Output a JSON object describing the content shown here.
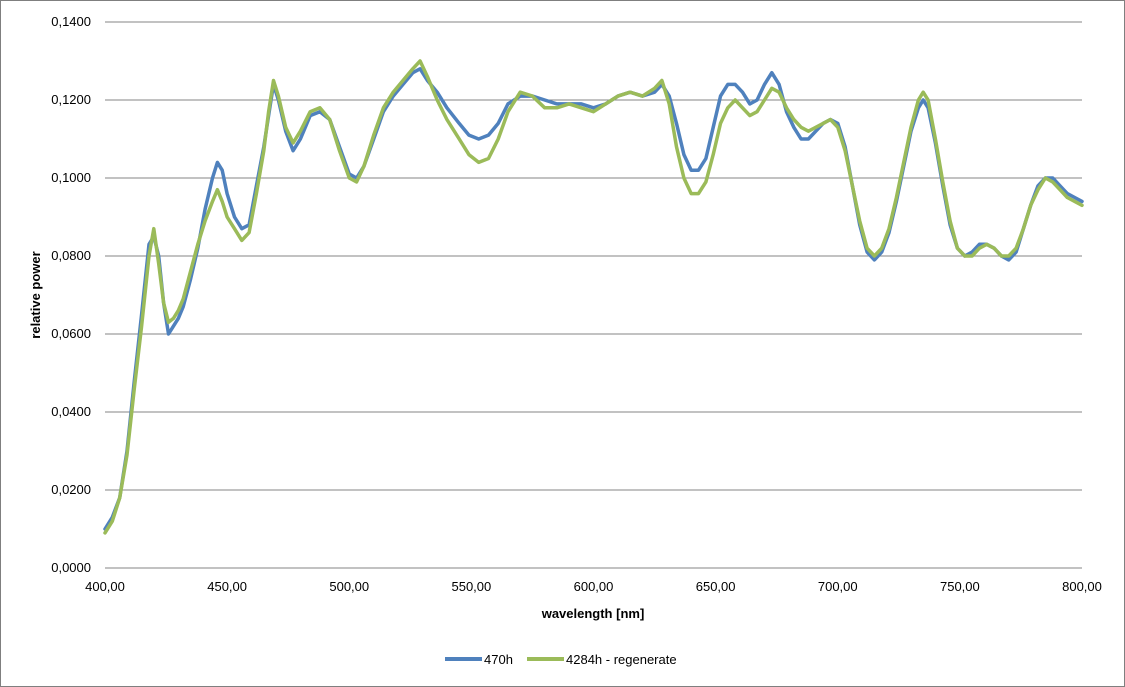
{
  "chart_data": {
    "type": "line",
    "title": "",
    "xlabel": "wavelength [nm]",
    "ylabel": "relative power",
    "xlim": [
      400,
      800
    ],
    "ylim": [
      0,
      0.14
    ],
    "x_ticks": [
      400,
      450,
      500,
      550,
      600,
      650,
      700,
      750,
      800
    ],
    "x_tick_labels": [
      "400,00",
      "450,00",
      "500,00",
      "550,00",
      "600,00",
      "650,00",
      "700,00",
      "750,00",
      "800,00"
    ],
    "y_ticks": [
      0,
      0.02,
      0.04,
      0.06,
      0.08,
      0.1,
      0.12,
      0.14
    ],
    "y_tick_labels": [
      "0,0000",
      "0,0200",
      "0,0400",
      "0,0600",
      "0,0800",
      "0,1000",
      "0,1200",
      "0,1400"
    ],
    "grid": "horizontal",
    "legend_position": "bottom",
    "series": [
      {
        "name": "470h",
        "color": "#4f81bd",
        "points": [
          [
            400,
            0.01
          ],
          [
            403,
            0.013
          ],
          [
            406,
            0.018
          ],
          [
            409,
            0.03
          ],
          [
            412,
            0.048
          ],
          [
            415,
            0.065
          ],
          [
            418,
            0.083
          ],
          [
            420,
            0.085
          ],
          [
            422,
            0.08
          ],
          [
            424,
            0.068
          ],
          [
            426,
            0.06
          ],
          [
            428,
            0.062
          ],
          [
            430,
            0.064
          ],
          [
            432,
            0.067
          ],
          [
            435,
            0.074
          ],
          [
            438,
            0.082
          ],
          [
            441,
            0.092
          ],
          [
            444,
            0.1
          ],
          [
            446,
            0.104
          ],
          [
            448,
            0.102
          ],
          [
            450,
            0.096
          ],
          [
            453,
            0.09
          ],
          [
            456,
            0.087
          ],
          [
            459,
            0.088
          ],
          [
            462,
            0.098
          ],
          [
            465,
            0.108
          ],
          [
            467,
            0.116
          ],
          [
            469,
            0.124
          ],
          [
            471,
            0.12
          ],
          [
            474,
            0.112
          ],
          [
            477,
            0.107
          ],
          [
            480,
            0.11
          ],
          [
            484,
            0.116
          ],
          [
            488,
            0.117
          ],
          [
            492,
            0.115
          ],
          [
            496,
            0.108
          ],
          [
            500,
            0.101
          ],
          [
            503,
            0.1
          ],
          [
            506,
            0.103
          ],
          [
            510,
            0.11
          ],
          [
            514,
            0.117
          ],
          [
            518,
            0.121
          ],
          [
            522,
            0.124
          ],
          [
            526,
            0.127
          ],
          [
            529,
            0.128
          ],
          [
            532,
            0.125
          ],
          [
            536,
            0.122
          ],
          [
            540,
            0.118
          ],
          [
            545,
            0.114
          ],
          [
            549,
            0.111
          ],
          [
            553,
            0.11
          ],
          [
            557,
            0.111
          ],
          [
            561,
            0.114
          ],
          [
            565,
            0.119
          ],
          [
            570,
            0.121
          ],
          [
            575,
            0.121
          ],
          [
            580,
            0.12
          ],
          [
            585,
            0.119
          ],
          [
            590,
            0.119
          ],
          [
            595,
            0.119
          ],
          [
            600,
            0.118
          ],
          [
            605,
            0.119
          ],
          [
            610,
            0.121
          ],
          [
            615,
            0.122
          ],
          [
            620,
            0.121
          ],
          [
            625,
            0.122
          ],
          [
            628,
            0.124
          ],
          [
            631,
            0.121
          ],
          [
            634,
            0.114
          ],
          [
            637,
            0.106
          ],
          [
            640,
            0.102
          ],
          [
            643,
            0.102
          ],
          [
            646,
            0.105
          ],
          [
            649,
            0.113
          ],
          [
            652,
            0.121
          ],
          [
            655,
            0.124
          ],
          [
            658,
            0.124
          ],
          [
            661,
            0.122
          ],
          [
            664,
            0.119
          ],
          [
            667,
            0.12
          ],
          [
            670,
            0.124
          ],
          [
            673,
            0.127
          ],
          [
            676,
            0.124
          ],
          [
            679,
            0.117
          ],
          [
            682,
            0.113
          ],
          [
            685,
            0.11
          ],
          [
            688,
            0.11
          ],
          [
            691,
            0.112
          ],
          [
            694,
            0.114
          ],
          [
            697,
            0.115
          ],
          [
            700,
            0.114
          ],
          [
            703,
            0.108
          ],
          [
            706,
            0.098
          ],
          [
            709,
            0.088
          ],
          [
            712,
            0.081
          ],
          [
            715,
            0.079
          ],
          [
            718,
            0.081
          ],
          [
            721,
            0.086
          ],
          [
            724,
            0.094
          ],
          [
            727,
            0.103
          ],
          [
            730,
            0.112
          ],
          [
            733,
            0.118
          ],
          [
            735,
            0.12
          ],
          [
            737,
            0.118
          ],
          [
            740,
            0.109
          ],
          [
            743,
            0.098
          ],
          [
            746,
            0.088
          ],
          [
            749,
            0.082
          ],
          [
            752,
            0.08
          ],
          [
            755,
            0.081
          ],
          [
            758,
            0.083
          ],
          [
            761,
            0.083
          ],
          [
            764,
            0.082
          ],
          [
            767,
            0.08
          ],
          [
            770,
            0.079
          ],
          [
            773,
            0.081
          ],
          [
            776,
            0.087
          ],
          [
            779,
            0.093
          ],
          [
            782,
            0.098
          ],
          [
            785,
            0.1
          ],
          [
            788,
            0.1
          ],
          [
            791,
            0.098
          ],
          [
            794,
            0.096
          ],
          [
            797,
            0.095
          ],
          [
            800,
            0.094
          ]
        ]
      },
      {
        "name": "4284h - regenerate",
        "color": "#9bbb59",
        "points": [
          [
            400,
            0.009
          ],
          [
            403,
            0.012
          ],
          [
            406,
            0.018
          ],
          [
            409,
            0.029
          ],
          [
            412,
            0.046
          ],
          [
            415,
            0.062
          ],
          [
            418,
            0.08
          ],
          [
            420,
            0.087
          ],
          [
            422,
            0.078
          ],
          [
            424,
            0.068
          ],
          [
            426,
            0.063
          ],
          [
            428,
            0.064
          ],
          [
            430,
            0.066
          ],
          [
            432,
            0.069
          ],
          [
            435,
            0.076
          ],
          [
            438,
            0.083
          ],
          [
            441,
            0.089
          ],
          [
            444,
            0.094
          ],
          [
            446,
            0.097
          ],
          [
            448,
            0.094
          ],
          [
            450,
            0.09
          ],
          [
            453,
            0.087
          ],
          [
            456,
            0.084
          ],
          [
            459,
            0.086
          ],
          [
            462,
            0.096
          ],
          [
            465,
            0.107
          ],
          [
            467,
            0.117
          ],
          [
            469,
            0.125
          ],
          [
            471,
            0.121
          ],
          [
            474,
            0.113
          ],
          [
            477,
            0.109
          ],
          [
            480,
            0.112
          ],
          [
            484,
            0.117
          ],
          [
            488,
            0.118
          ],
          [
            492,
            0.115
          ],
          [
            496,
            0.107
          ],
          [
            500,
            0.1
          ],
          [
            503,
            0.099
          ],
          [
            506,
            0.103
          ],
          [
            510,
            0.111
          ],
          [
            514,
            0.118
          ],
          [
            518,
            0.122
          ],
          [
            522,
            0.125
          ],
          [
            526,
            0.128
          ],
          [
            529,
            0.13
          ],
          [
            532,
            0.126
          ],
          [
            536,
            0.12
          ],
          [
            540,
            0.115
          ],
          [
            545,
            0.11
          ],
          [
            549,
            0.106
          ],
          [
            553,
            0.104
          ],
          [
            557,
            0.105
          ],
          [
            561,
            0.11
          ],
          [
            565,
            0.117
          ],
          [
            570,
            0.122
          ],
          [
            575,
            0.121
          ],
          [
            580,
            0.118
          ],
          [
            585,
            0.118
          ],
          [
            590,
            0.119
          ],
          [
            595,
            0.118
          ],
          [
            600,
            0.117
          ],
          [
            605,
            0.119
          ],
          [
            610,
            0.121
          ],
          [
            615,
            0.122
          ],
          [
            620,
            0.121
          ],
          [
            625,
            0.123
          ],
          [
            628,
            0.125
          ],
          [
            631,
            0.119
          ],
          [
            634,
            0.108
          ],
          [
            637,
            0.1
          ],
          [
            640,
            0.096
          ],
          [
            643,
            0.096
          ],
          [
            646,
            0.099
          ],
          [
            649,
            0.106
          ],
          [
            652,
            0.114
          ],
          [
            655,
            0.118
          ],
          [
            658,
            0.12
          ],
          [
            661,
            0.118
          ],
          [
            664,
            0.116
          ],
          [
            667,
            0.117
          ],
          [
            670,
            0.12
          ],
          [
            673,
            0.123
          ],
          [
            676,
            0.122
          ],
          [
            679,
            0.118
          ],
          [
            682,
            0.115
          ],
          [
            685,
            0.113
          ],
          [
            688,
            0.112
          ],
          [
            691,
            0.113
          ],
          [
            694,
            0.114
          ],
          [
            697,
            0.115
          ],
          [
            700,
            0.113
          ],
          [
            703,
            0.107
          ],
          [
            706,
            0.098
          ],
          [
            709,
            0.089
          ],
          [
            712,
            0.082
          ],
          [
            715,
            0.08
          ],
          [
            718,
            0.082
          ],
          [
            721,
            0.087
          ],
          [
            724,
            0.095
          ],
          [
            727,
            0.104
          ],
          [
            730,
            0.113
          ],
          [
            733,
            0.12
          ],
          [
            735,
            0.122
          ],
          [
            737,
            0.12
          ],
          [
            740,
            0.11
          ],
          [
            743,
            0.099
          ],
          [
            746,
            0.089
          ],
          [
            749,
            0.082
          ],
          [
            752,
            0.08
          ],
          [
            755,
            0.08
          ],
          [
            758,
            0.082
          ],
          [
            761,
            0.083
          ],
          [
            764,
            0.082
          ],
          [
            767,
            0.08
          ],
          [
            770,
            0.08
          ],
          [
            773,
            0.082
          ],
          [
            776,
            0.087
          ],
          [
            779,
            0.093
          ],
          [
            782,
            0.097
          ],
          [
            785,
            0.1
          ],
          [
            788,
            0.099
          ],
          [
            791,
            0.097
          ],
          [
            794,
            0.095
          ],
          [
            797,
            0.094
          ],
          [
            800,
            0.093
          ]
        ]
      }
    ]
  }
}
